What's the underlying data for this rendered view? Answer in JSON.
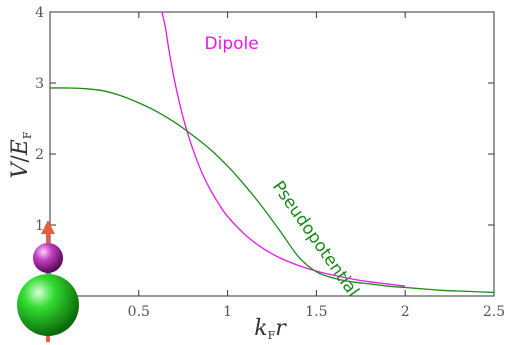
{
  "chart_data": {
    "type": "line",
    "xlabel": {
      "var": "k",
      "sub": "F",
      "tail": "r"
    },
    "ylabel": {
      "var": "V",
      "sep": "/",
      "var2": "E",
      "sub": "F"
    },
    "xlim": [
      0,
      2.5
    ],
    "ylim": [
      0,
      4
    ],
    "x_ticks": [
      "0.5",
      "1",
      "1.5",
      "2",
      "2.5"
    ],
    "y_ticks": [
      "1",
      "2",
      "3",
      "4"
    ],
    "grid": false,
    "series": [
      {
        "name": "Dipole",
        "color": "#e619e6",
        "x": [
          0.63,
          0.65,
          0.67,
          0.7,
          0.73,
          0.76,
          0.8,
          0.85,
          0.9,
          0.95,
          1.0,
          1.1,
          1.2,
          1.3,
          1.4,
          1.5,
          1.6,
          1.7,
          1.8,
          1.9,
          2.0
        ],
        "y": [
          4.0,
          3.78,
          3.46,
          3.05,
          2.71,
          2.42,
          2.1,
          1.77,
          1.51,
          1.3,
          1.12,
          0.86,
          0.67,
          0.53,
          0.43,
          0.35,
          0.29,
          0.24,
          0.2,
          0.17,
          0.14
        ]
      },
      {
        "name": "Pseudopotential",
        "color": "#1a8a1a",
        "x": [
          0.0,
          0.1,
          0.2,
          0.3,
          0.4,
          0.5,
          0.6,
          0.7,
          0.8,
          0.9,
          1.0,
          1.1,
          1.2,
          1.3,
          1.4,
          1.5,
          1.6,
          1.7,
          1.8,
          1.9,
          2.0,
          2.1,
          2.2,
          2.3,
          2.4,
          2.5
        ],
        "y": [
          2.93,
          2.93,
          2.92,
          2.89,
          2.82,
          2.72,
          2.6,
          2.45,
          2.27,
          2.07,
          1.83,
          1.55,
          1.24,
          0.9,
          0.55,
          0.34,
          0.25,
          0.2,
          0.17,
          0.14,
          0.12,
          0.1,
          0.08,
          0.07,
          0.06,
          0.05
        ]
      }
    ],
    "annotations": [
      {
        "text": "Dipole",
        "x": 0.87,
        "y": 3.48,
        "color": "#e619e6",
        "rotate": 0
      },
      {
        "text": "Pseudopotential",
        "x": 1.25,
        "y": 1.55,
        "color": "#1a8a1a",
        "rotate": 55
      }
    ]
  }
}
